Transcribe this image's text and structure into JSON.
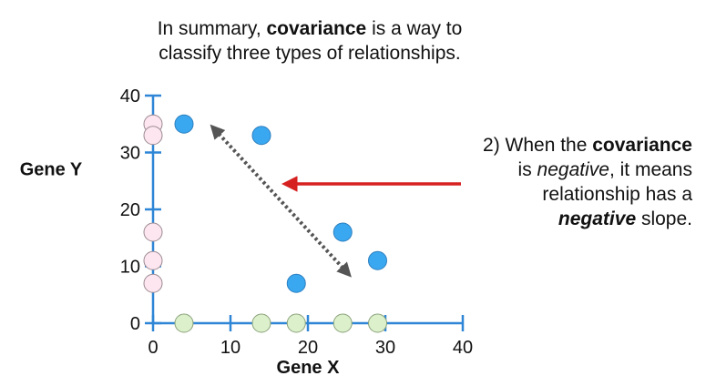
{
  "header": {
    "line1_prefix": "In summary, ",
    "line1_bold": "covariance",
    "line1_suffix": " is a way to",
    "line2": "classify three types of relationships."
  },
  "annotation": {
    "line1_prefix": "2) When the ",
    "line1_bold": "covariance",
    "line2_prefix": "is ",
    "line2_italic": "negative",
    "line2_suffix": ", it means",
    "line3": "relationship has a",
    "line4_bold_italic": "negative",
    "line4_suffix": " slope."
  },
  "colors": {
    "axis": "#2f86d6",
    "blue_point": "#3aa8f0",
    "pink_point": "#fde6ef",
    "green_point": "#dcf0cc",
    "arrow_red": "#d62121",
    "arrow_dotted": "#555555"
  },
  "chart_data": {
    "type": "scatter",
    "xlabel": "Gene X",
    "ylabel": "Gene Y",
    "xlim": [
      0,
      40
    ],
    "ylim": [
      0,
      40
    ],
    "x_ticks": [
      0,
      10,
      20,
      30,
      40
    ],
    "y_ticks": [
      0,
      10,
      20,
      30,
      40
    ],
    "series": [
      {
        "role": "data",
        "color": "blue",
        "points": [
          [
            4,
            35
          ],
          [
            14,
            33
          ],
          [
            18.5,
            7
          ],
          [
            24.5,
            16
          ],
          [
            29,
            11
          ]
        ]
      },
      {
        "role": "x-projection",
        "color": "green",
        "points": [
          [
            4,
            0
          ],
          [
            14,
            0
          ],
          [
            18.5,
            0
          ],
          [
            24.5,
            0
          ],
          [
            29,
            0
          ]
        ]
      },
      {
        "role": "y-projection",
        "color": "pink",
        "points": [
          [
            0,
            35
          ],
          [
            0,
            33
          ],
          [
            0,
            7
          ],
          [
            0,
            16
          ],
          [
            0,
            11
          ]
        ]
      }
    ],
    "trend_arrow": {
      "style": "dotted",
      "from": [
        8,
        34
      ],
      "to": [
        25,
        9
      ]
    }
  }
}
